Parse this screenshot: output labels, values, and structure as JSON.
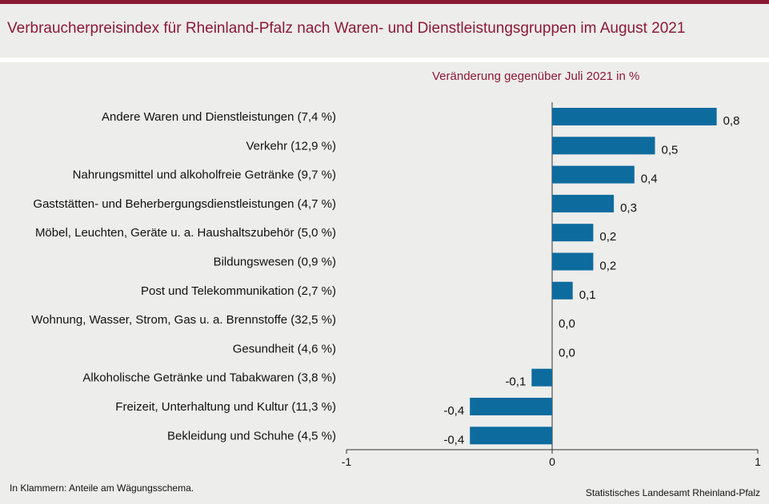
{
  "chart_data": {
    "type": "bar",
    "orientation": "horizontal",
    "title": "Verbraucherpreisindex für Rheinland-Pfalz nach Waren- und Dienstleistungsgruppen im August 2021",
    "subtitle": "Veränderung gegenüber Juli 2021 in %",
    "categories": [
      "Andere Waren und Dienstleistungen (7,4 %)",
      "Verkehr (12,9 %)",
      "Nahrungsmittel und alkoholfreie Getränke (9,7 %)",
      "Gaststätten- und Beherbergungsdienstleistungen (4,7 %)",
      "Möbel, Leuchten, Geräte u. a. Haushaltszubehör (5,0 %)",
      "Bildungswesen (0,9 %)",
      "Post und Telekommunikation (2,7 %)",
      "Wohnung, Wasser, Strom, Gas u. a. Brennstoffe (32,5 %)",
      "Gesundheit (4,6 %)",
      "Alkoholische Getränke und Tabakwaren (3,8 %)",
      "Freizeit, Unterhaltung und Kultur (11,3 %)",
      "Bekleidung und Schuhe (4,5 %)"
    ],
    "values": [
      0.8,
      0.5,
      0.4,
      0.3,
      0.2,
      0.2,
      0.1,
      0.0,
      0.0,
      -0.1,
      -0.4,
      -0.4
    ],
    "value_labels": [
      "0,8",
      "0,5",
      "0,4",
      "0,3",
      "0,2",
      "0,2",
      "0,1",
      "0,0",
      "0,0",
      "-0,1",
      "-0,4",
      "-0,4"
    ],
    "xlim": [
      -1,
      1
    ],
    "xticks": [
      -1,
      0,
      1
    ],
    "xtick_labels": [
      "-1",
      "0",
      "1"
    ],
    "bar_color": "#0e6b9e",
    "grid": false,
    "legend": "none"
  },
  "footnote": "In Klammern: Anteile am Wägungsschema.",
  "source": "Statistisches Landesamt Rheinland-Pfalz",
  "colors": {
    "accent": "#8b1a35",
    "background": "#ededeb"
  }
}
